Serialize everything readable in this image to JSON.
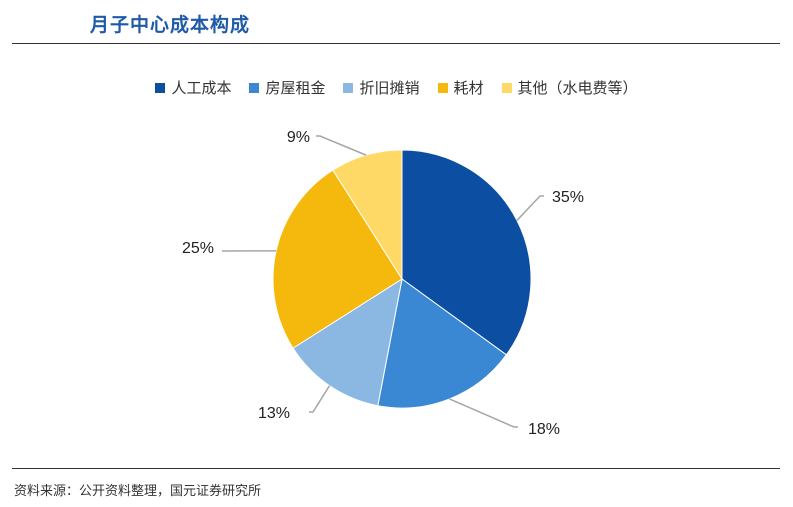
{
  "header": {
    "title": "月子中心成本构成"
  },
  "footer": {
    "source": "资料来源：公开资料整理，国元证券研究所"
  },
  "chart_data": {
    "type": "pie",
    "title": "月子中心成本构成",
    "legend_position": "top",
    "categories": [
      "人工成本",
      "房屋租金",
      "折旧摊销",
      "耗材",
      "其他（水电费等）"
    ],
    "values": [
      35,
      18,
      13,
      25,
      9
    ],
    "labels": [
      "35%",
      "18%",
      "13%",
      "25%",
      "9%"
    ],
    "colors": [
      "#0b4ea2",
      "#3a87d3",
      "#8ab8e3",
      "#f5b80c",
      "#ffd966"
    ]
  }
}
